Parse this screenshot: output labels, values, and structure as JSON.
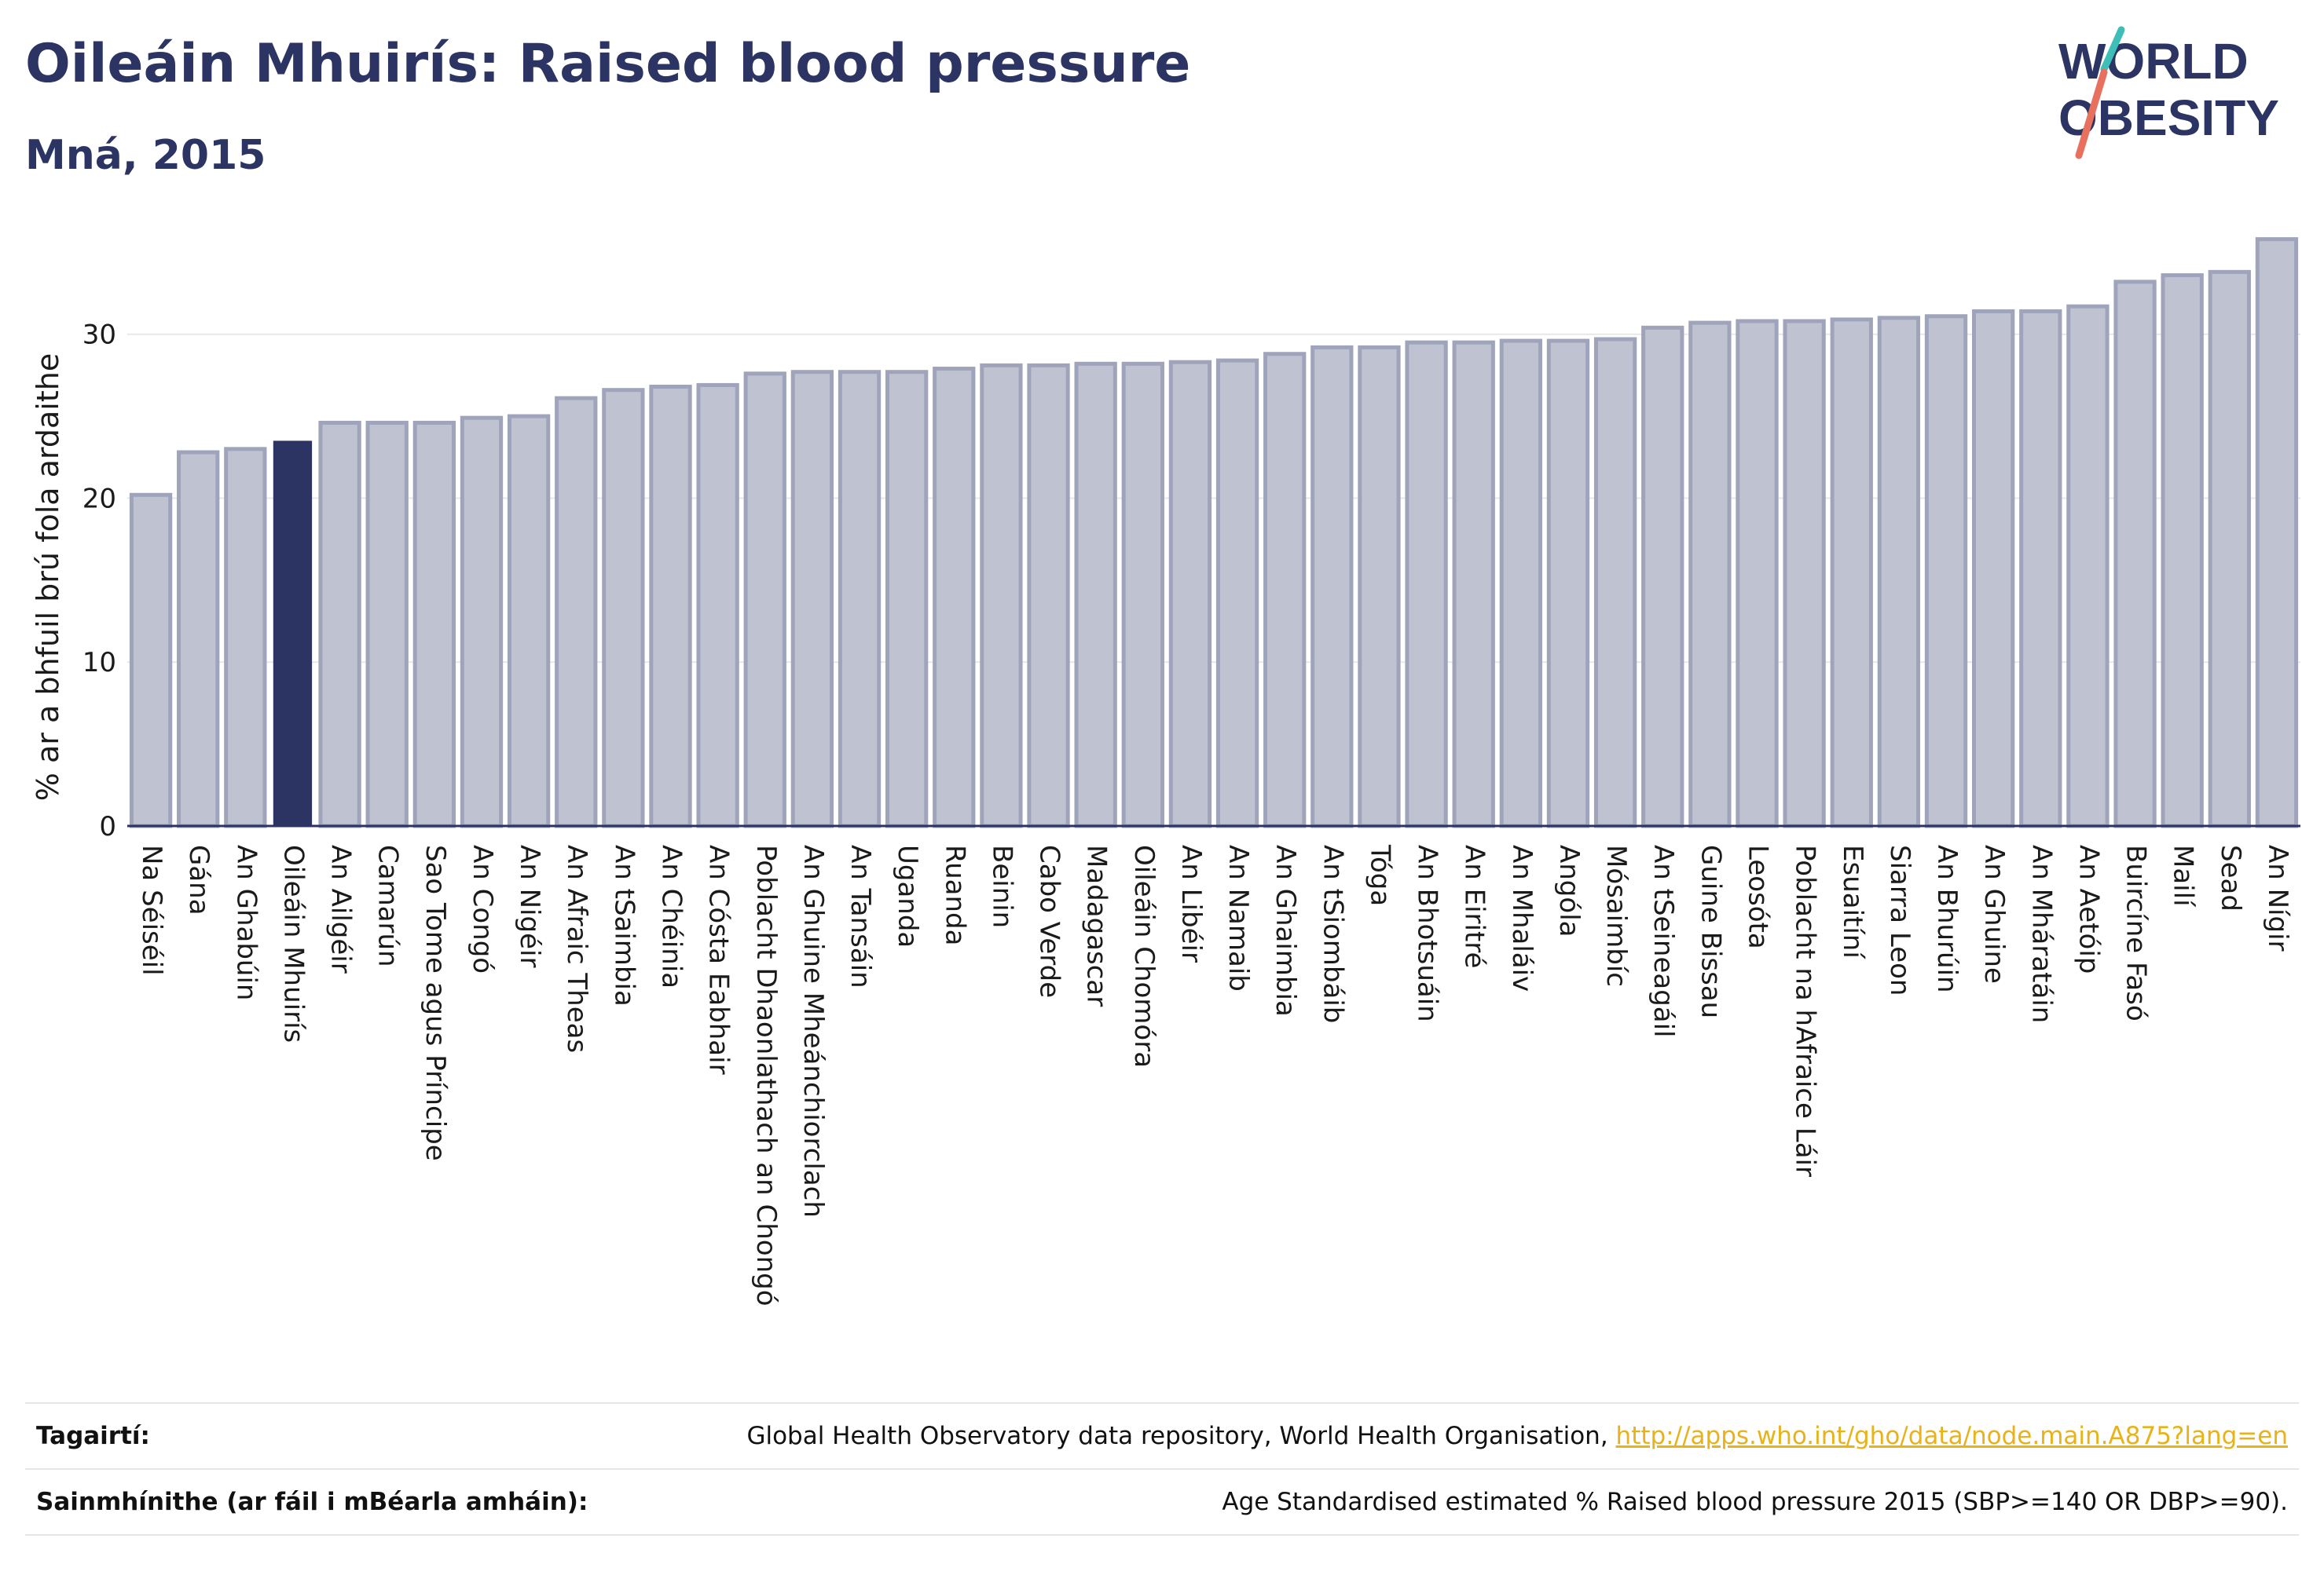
{
  "title": "Oileáin Mhuirís: Raised blood pressure",
  "subtitle": "Mná, 2015",
  "logo": {
    "line1": "WORLD",
    "line2": "OBESITY"
  },
  "colors": {
    "bar": "#bfc2d0",
    "bar_stroke": "#9fa4bb",
    "highlight": "#2b3462",
    "grid": "#e8e8e8",
    "axis": "#2b3462",
    "link": "#e8b21a",
    "logo_text": "#2b3462",
    "logo_slash_top": "#3dbfb8",
    "logo_slash_bottom": "#e8705f"
  },
  "chart_data": {
    "type": "bar",
    "title": "Oileáin Mhuirís: Raised blood pressure",
    "subtitle": "Mná, 2015",
    "xlabel": "",
    "ylabel": "% ar a bhfuil brú fola ardaithe",
    "ylim": [
      0,
      36.5
    ],
    "yticks": [
      0,
      10,
      20,
      30
    ],
    "grid": true,
    "highlight": "Oileáin Mhuirís",
    "categories": [
      "Na Séiséil",
      "Gána",
      "An Ghabúin",
      "Oileáin Mhuirís",
      "An Ailgéir",
      "Camarún",
      "Sao Tome agus Príncipe",
      "An Congó",
      "An Nigéir",
      "An Afraic Theas",
      "An tSaimbia",
      "An Chéinia",
      "An Cósta Eabhair",
      "Poblacht Dhaonlathach an Chongó",
      "An Ghuine Mheánchiorclach",
      "An Tansáin",
      "Uganda",
      "Ruanda",
      "Beinin",
      "Cabo Verde",
      "Madagascar",
      "Oileáin Chomóra",
      "An Libéir",
      "An Namaib",
      "An Ghaimbia",
      "An tSiombáib",
      "Tóga",
      "An Bhotsuáin",
      "An Eiritré",
      "An Mhaláiv",
      "Angóla",
      "Mósaimbíc",
      "An tSeineagáil",
      "Guine Bissau",
      "Leosóta",
      "Poblacht na hAfraice Láir",
      "Esuaitíní",
      "Siarra Leon",
      "An Bhurúin",
      "An Ghuine",
      "An Mháratáin",
      "An Aetóip",
      "Buircíne Fasó",
      "Mailí",
      "Sead",
      "An Nígir"
    ],
    "values": [
      20.2,
      22.8,
      23.0,
      23.5,
      24.6,
      24.6,
      24.6,
      24.9,
      25.0,
      26.1,
      26.6,
      26.8,
      26.9,
      27.6,
      27.7,
      27.7,
      27.7,
      27.9,
      28.1,
      28.1,
      28.2,
      28.2,
      28.3,
      28.4,
      28.8,
      29.2,
      29.2,
      29.5,
      29.5,
      29.6,
      29.6,
      29.7,
      30.4,
      30.7,
      30.8,
      30.8,
      30.9,
      31.0,
      31.1,
      31.4,
      31.4,
      31.7,
      33.2,
      33.6,
      33.8,
      35.8
    ]
  },
  "references": {
    "source_label": "Tagairtí:",
    "source_text": "Global Health Observatory data repository, World Health Organisation, ",
    "source_link": "http://apps.who.int/gho/data/node.main.A875?lang=en",
    "definition_label": "Sainmhínithe (ar fáil i mBéarla amháin):",
    "definition_text": "Age Standardised estimated % Raised blood pressure 2015 (SBP>=140 OR DBP>=90)."
  }
}
